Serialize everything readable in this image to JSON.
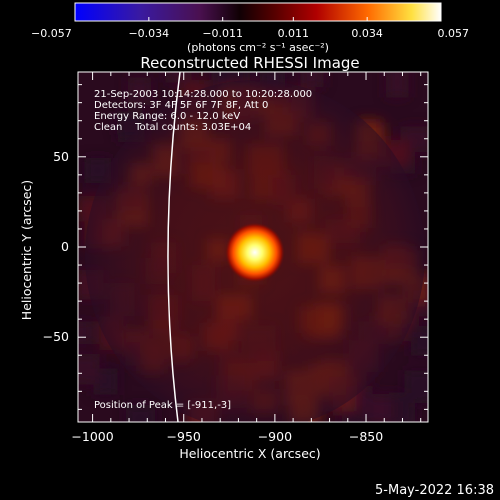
{
  "chart_data": {
    "type": "heatmap",
    "title": "Reconstructed RHESSI Image",
    "xlabel": "Heliocentric X (arcsec)",
    "ylabel": "Heliocentric Y (arcsec)",
    "xlim": [
      -1008,
      -816
    ],
    "ylim": [
      -97,
      97
    ],
    "x_ticks": [
      -1000,
      -950,
      -900,
      -850
    ],
    "y_ticks": [
      -50,
      0,
      50
    ],
    "x_tick_labels": [
      "−1000",
      "−950",
      "−900",
      "−850"
    ],
    "y_tick_labels": [
      "−50",
      "0",
      "50"
    ],
    "colorbar": {
      "min": -0.057,
      "max": 0.057,
      "ticks": [
        -0.057,
        -0.034,
        -0.011,
        0.011,
        0.034,
        0.057
      ],
      "tick_labels": [
        "−0.057",
        "−0.034",
        "−0.011",
        "0.011",
        "0.034",
        "0.057"
      ],
      "units_label": "(photons cm⁻² s⁻¹ asec⁻²)",
      "colors": [
        "#0000ff",
        "#5a1a8a",
        "#000000",
        "#a00000",
        "#ff7a00",
        "#ffff40",
        "#ffffff"
      ]
    },
    "peak": {
      "x": -911,
      "y": -3,
      "value": 0.057
    },
    "limb_arc_description": "solar limb",
    "annotations": [
      "21-Sep-2003 10:14:28.000 to 10:20:28.000",
      "Detectors: 3F 4F 5F 6F 7F 8F, Att 0",
      "Energy Range: 6.0 - 12.0 keV",
      "Clean    Total counts: 3.03E+04"
    ],
    "peak_label": "Position of Peak = [-911,-3]"
  },
  "footer": {
    "timestamp": "5-May-2022 16:38"
  },
  "colors": {
    "background": "#000000",
    "text": "#ffffff",
    "plot_bg": "#3a0e16"
  }
}
